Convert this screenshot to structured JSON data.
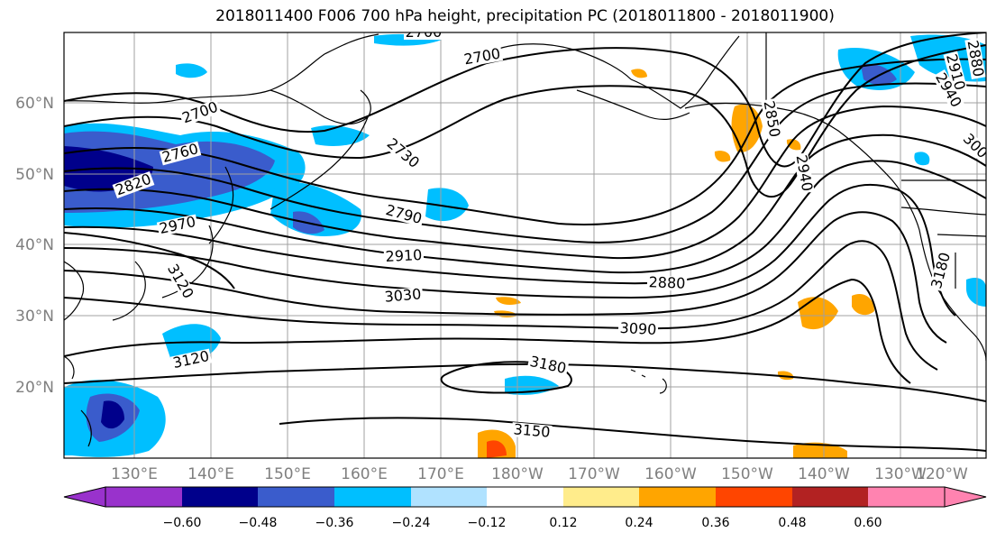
{
  "title": "2018011400 F006 700 hPa height, precipitation PC (2018011800 - 2018011900)",
  "lat_labels": [
    "60°N",
    "50°N",
    "40°N",
    "30°N",
    "20°N"
  ],
  "lon_labels": [
    "130°E",
    "140°E",
    "150°E",
    "160°E",
    "170°E",
    "180°W",
    "170°W",
    "160°W",
    "150°W",
    "140°W",
    "130°W",
    "120°W"
  ],
  "colorbar": {
    "colors": [
      "#9932cc",
      "#00008b",
      "#3a5ccc",
      "#00bfff",
      "#b0e2ff",
      "#ffffff",
      "#ffec8b",
      "#ffa500",
      "#ff4500",
      "#b22222",
      "#ff83b0"
    ],
    "tick_labels": [
      "−0.60",
      "−0.48",
      "−0.36",
      "−0.24",
      "−0.12",
      "0.12",
      "0.24",
      "0.36",
      "0.48",
      "0.60"
    ]
  },
  "contour_labels": [
    "2700",
    "2760",
    "2700",
    "2730",
    "2760",
    "2820",
    "2790",
    "2970",
    "2910",
    "3030",
    "3120",
    "3180",
    "3150",
    "3090",
    "2880",
    "2850",
    "2940",
    "3180",
    "2910",
    "2940",
    "2880",
    "300",
    "3"
  ]
}
